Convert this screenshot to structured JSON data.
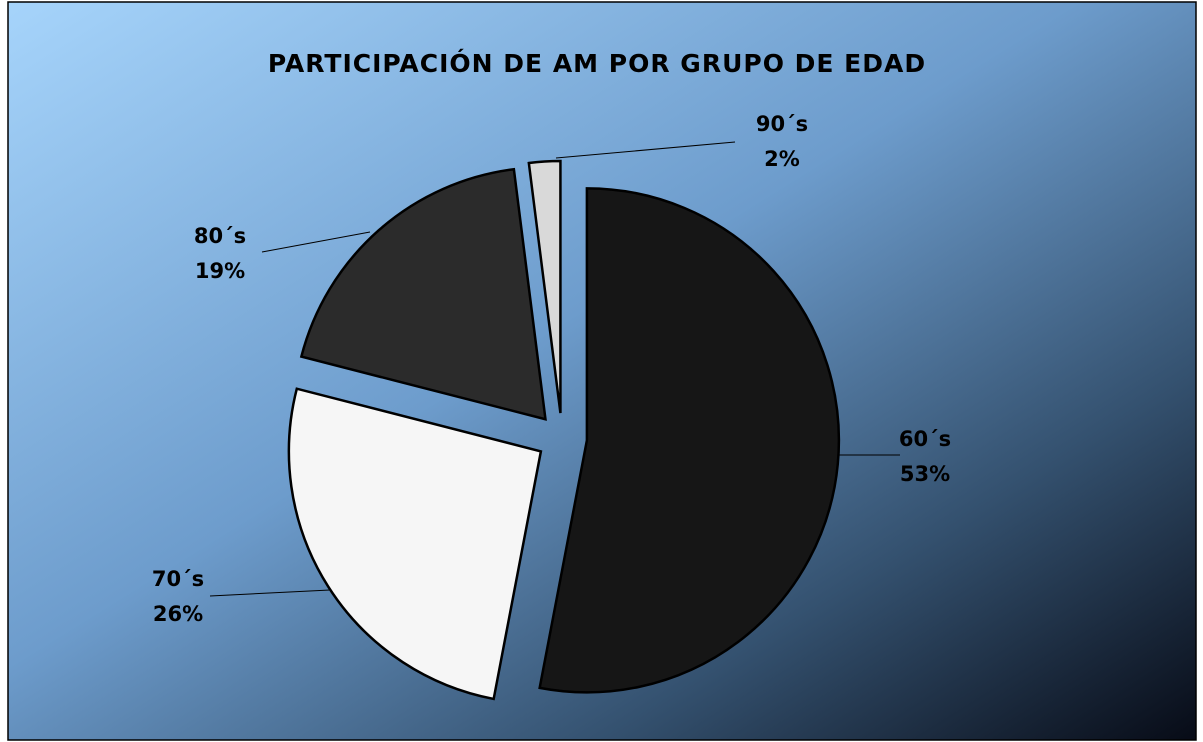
{
  "chart_data": {
    "type": "pie",
    "title": "PARTICIPACIÓN DE AM POR GRUPO DE EDAD",
    "categories": [
      "60´s",
      "70´s",
      "80´s",
      "90´s"
    ],
    "values": [
      53,
      26,
      19,
      2
    ],
    "value_labels": [
      "53%",
      "26%",
      "19%",
      "2%"
    ],
    "colors": [
      "#161616",
      "#f6f6f6",
      "#2b2b2b",
      "#d9d9d9"
    ]
  }
}
